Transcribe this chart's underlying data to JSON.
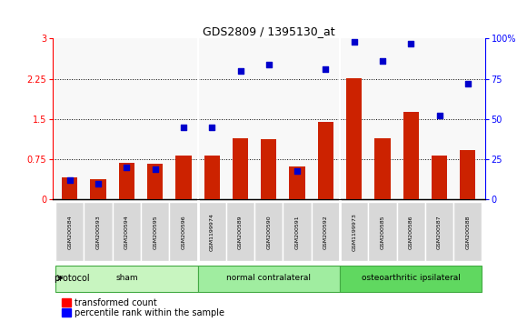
{
  "title": "GDS2809 / 1395130_at",
  "samples": [
    "GSM200584",
    "GSM200593",
    "GSM200594",
    "GSM200595",
    "GSM200596",
    "GSM1199974",
    "GSM200589",
    "GSM200590",
    "GSM200591",
    "GSM200592",
    "GSM1199973",
    "GSM200585",
    "GSM200586",
    "GSM200587",
    "GSM200588"
  ],
  "red_values": [
    0.42,
    0.38,
    0.68,
    0.67,
    0.82,
    0.82,
    1.15,
    1.13,
    0.62,
    1.45,
    2.27,
    1.15,
    1.63,
    0.82,
    0.92
  ],
  "blue_percentile": [
    12,
    10,
    20,
    19,
    45,
    45,
    80,
    84,
    18,
    81,
    98,
    86,
    97,
    52,
    72
  ],
  "groups": [
    {
      "label": "sham",
      "start": 0,
      "end": 4
    },
    {
      "label": "normal contralateral",
      "start": 5,
      "end": 9
    },
    {
      "label": "osteoarthritic ipsilateral",
      "start": 10,
      "end": 14
    }
  ],
  "proto_colors": [
    "#c8f5c0",
    "#a0eda0",
    "#60d860"
  ],
  "ylim_left": [
    0,
    3
  ],
  "ylim_right": [
    0,
    100
  ],
  "yticks_left": [
    0,
    0.75,
    1.5,
    2.25,
    3.0
  ],
  "ytick_labels_left": [
    "0",
    "0.75",
    "1.5",
    "2.25",
    "3"
  ],
  "yticks_right": [
    0,
    25,
    50,
    75,
    100
  ],
  "ytick_labels_right": [
    "0",
    "25",
    "50",
    "75",
    "100%"
  ],
  "hlines": [
    0.75,
    1.5,
    2.25
  ],
  "bar_color": "#cc2200",
  "dot_color": "#0000cc",
  "plot_bg": "#f8f8f8",
  "protocol_label": "protocol",
  "legend_items": [
    "transformed count",
    "percentile rank within the sample"
  ],
  "group_boundaries": [
    4.5,
    9.5
  ]
}
